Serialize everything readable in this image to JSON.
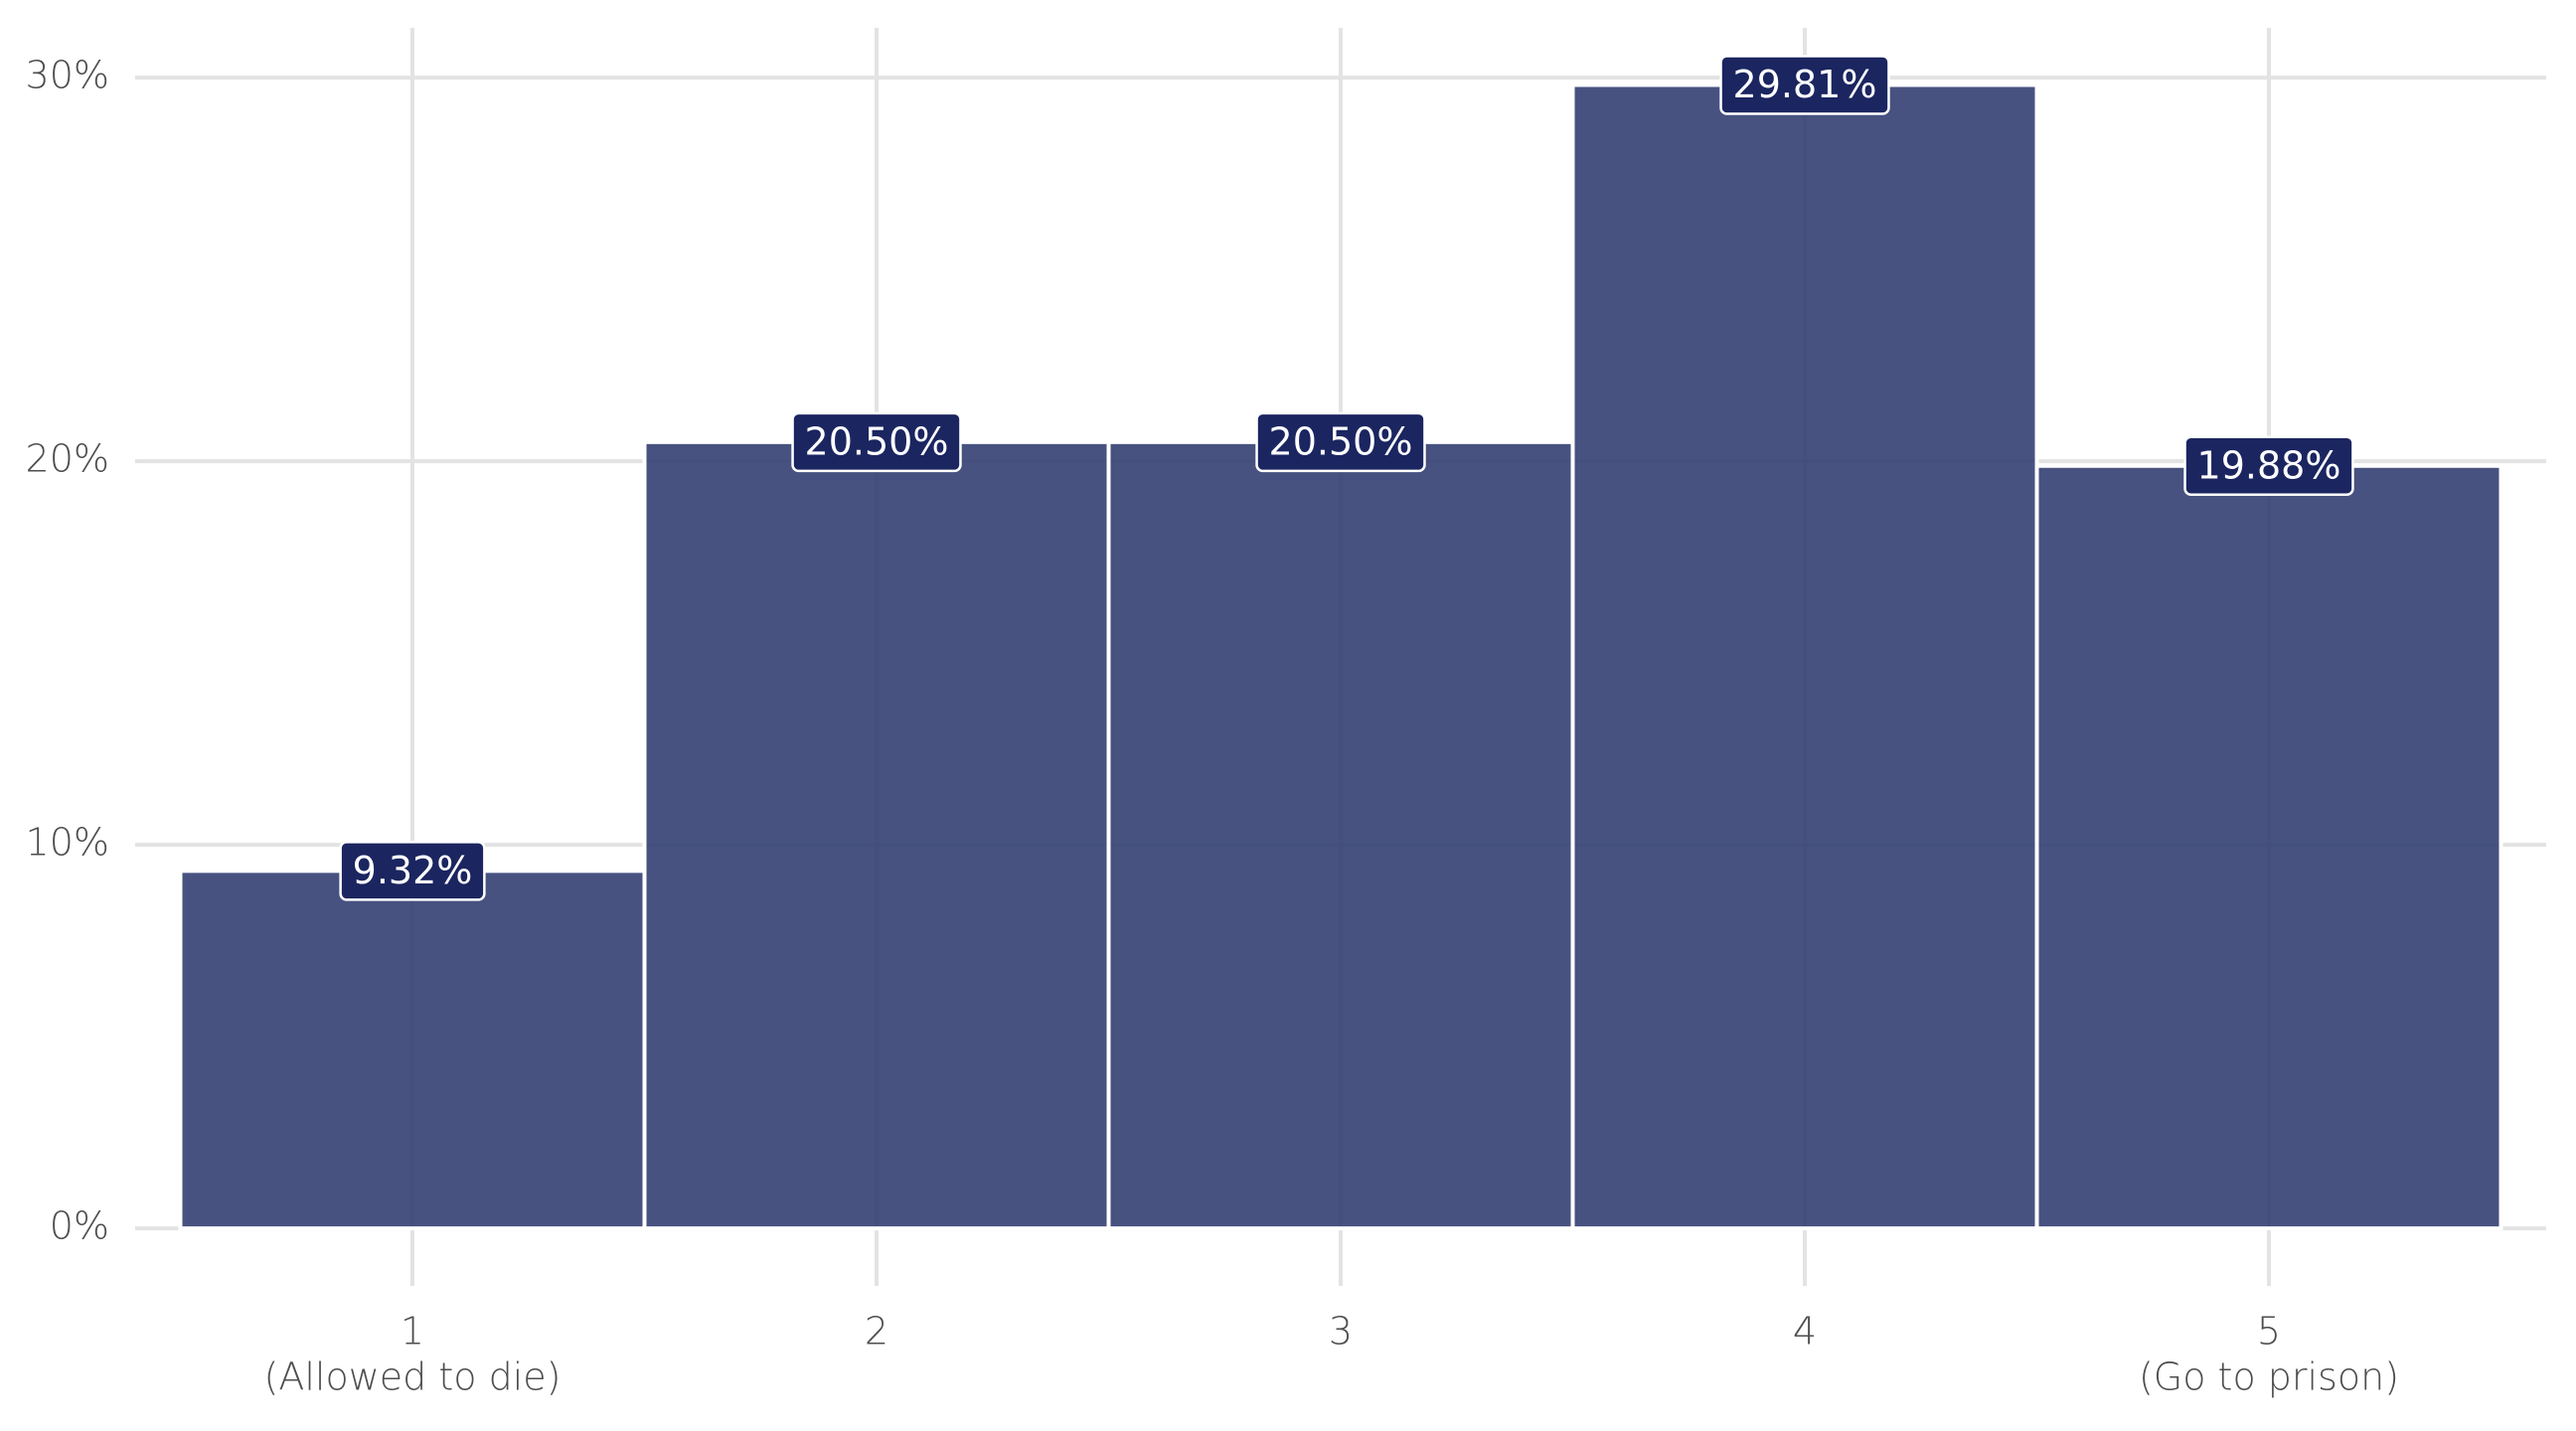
{
  "chart_data": {
    "type": "bar",
    "categories": [
      "1",
      "2",
      "3",
      "4",
      "5"
    ],
    "category_notes": [
      "(Allowed to die)",
      null,
      null,
      null,
      "(Go to prison)"
    ],
    "values": [
      9.32,
      20.5,
      20.5,
      29.81,
      19.88
    ],
    "value_labels": [
      "9.32%",
      "20.50%",
      "20.50%",
      "29.81%",
      "19.88%"
    ],
    "color": "#2e3a6e",
    "label_color": "#1b2560",
    "ylim": [
      -1.5,
      31.3
    ],
    "yticks": [
      {
        "value": 0,
        "label": "0%"
      },
      {
        "value": 10,
        "label": "10%"
      },
      {
        "value": 20,
        "label": "20%"
      },
      {
        "value": 30,
        "label": "30%"
      }
    ],
    "grid": true
  }
}
